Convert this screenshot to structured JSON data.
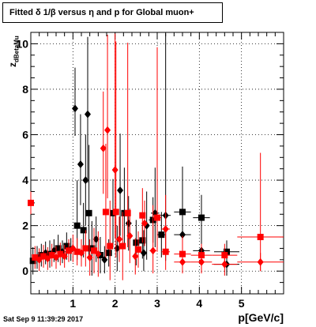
{
  "header": {
    "title": "Fitted δ 1/β versus η and p for Global muon+"
  },
  "footer": {
    "timestamp": "Sat Sep  9 11:39:29 2017"
  },
  "chart_data": {
    "type": "scatter",
    "title": "Fitted δ 1/β versus η and p for Global muon+",
    "xlabel": "p[GeV/c]",
    "ylabel_main": "z",
    "ylabel_sub": "dBetaMu",
    "xlim": [
      0,
      6
    ],
    "ylim": [
      -1,
      10.5
    ],
    "x_ticks": [
      1,
      2,
      3,
      4,
      5
    ],
    "y_ticks": [
      0,
      2,
      4,
      6,
      8,
      10
    ],
    "grid": true,
    "colors": {
      "black_series": "#000000",
      "red_series": "#ff0000"
    },
    "series": [
      {
        "color": "#000000",
        "points": [
          {
            "x": 0.05,
            "y": 0.45,
            "ex": 0.03,
            "eyl": 0.6,
            "eyh": 0.6,
            "m": "square"
          },
          {
            "x": 0.15,
            "y": 0.6,
            "ex": 0.03,
            "eyl": 0.5,
            "eyh": 0.5,
            "m": "diamond"
          },
          {
            "x": 0.25,
            "y": 0.7,
            "ex": 0.03,
            "eyl": 0.5,
            "eyh": 0.5,
            "m": "square"
          },
          {
            "x": 0.35,
            "y": 0.8,
            "ex": 0.03,
            "eyl": 0.5,
            "eyh": 0.5,
            "m": "diamond"
          },
          {
            "x": 0.45,
            "y": 0.75,
            "ex": 0.03,
            "eyl": 0.6,
            "eyh": 0.6,
            "m": "square"
          },
          {
            "x": 0.55,
            "y": 0.9,
            "ex": 0.03,
            "eyl": 0.5,
            "eyh": 0.5,
            "m": "diamond"
          },
          {
            "x": 0.65,
            "y": 1.0,
            "ex": 0.03,
            "eyl": 0.6,
            "eyh": 0.6,
            "m": "square"
          },
          {
            "x": 0.75,
            "y": 0.85,
            "ex": 0.03,
            "eyl": 0.5,
            "eyh": 0.5,
            "m": "diamond"
          },
          {
            "x": 0.85,
            "y": 1.1,
            "ex": 0.03,
            "eyl": 0.6,
            "eyh": 0.6,
            "m": "square"
          },
          {
            "x": 0.95,
            "y": 0.95,
            "ex": 0.03,
            "eyl": 0.5,
            "eyh": 0.5,
            "m": "diamond"
          },
          {
            "x": 1.05,
            "y": 7.15,
            "ex": 0.03,
            "eyl": 1.2,
            "eyh": 1.8,
            "m": "diamond"
          },
          {
            "x": 1.1,
            "y": 2.0,
            "ex": 0.05,
            "eyl": 1.5,
            "eyh": 2.0,
            "m": "square"
          },
          {
            "x": 1.18,
            "y": 4.7,
            "ex": 0.03,
            "eyl": 1.8,
            "eyh": 2.2,
            "m": "diamond"
          },
          {
            "x": 1.25,
            "y": 1.8,
            "ex": 0.05,
            "eyl": 1.2,
            "eyh": 1.2,
            "m": "square"
          },
          {
            "x": 1.3,
            "y": 4.0,
            "ex": 0.03,
            "eyl": 2.0,
            "eyh": 2.0,
            "m": "diamond"
          },
          {
            "x": 1.35,
            "y": 6.9,
            "ex": 0.03,
            "eyl": 3.0,
            "eyh": 3.4,
            "m": "diamond"
          },
          {
            "x": 1.38,
            "y": 2.55,
            "ex": 0.04,
            "eyl": 2.0,
            "eyh": 3.0,
            "m": "square"
          },
          {
            "x": 1.45,
            "y": 1.0,
            "ex": 0.04,
            "eyl": 1.2,
            "eyh": 1.2,
            "m": "square"
          },
          {
            "x": 1.55,
            "y": 1.4,
            "ex": 0.04,
            "eyl": 1.0,
            "eyh": 1.0,
            "m": "diamond"
          },
          {
            "x": 1.65,
            "y": 0.7,
            "ex": 0.04,
            "eyl": 0.8,
            "eyh": 0.8,
            "m": "square"
          },
          {
            "x": 1.75,
            "y": 0.5,
            "ex": 0.04,
            "eyl": 0.6,
            "eyh": 0.6,
            "m": "diamond"
          },
          {
            "x": 1.85,
            "y": 0.8,
            "ex": 0.04,
            "eyl": 0.6,
            "eyh": 0.6,
            "m": "square"
          },
          {
            "x": 1.95,
            "y": 2.55,
            "ex": 0.04,
            "eyl": 1.5,
            "eyh": 1.5,
            "m": "square"
          },
          {
            "x": 2.05,
            "y": 1.0,
            "ex": 0.04,
            "eyl": 1.0,
            "eyh": 1.0,
            "m": "diamond"
          },
          {
            "x": 2.12,
            "y": 3.55,
            "ex": 0.05,
            "eyl": 2.0,
            "eyh": 2.5,
            "m": "diamond"
          },
          {
            "x": 2.22,
            "y": 2.55,
            "ex": 0.05,
            "eyl": 1.5,
            "eyh": 2.0,
            "m": "square"
          },
          {
            "x": 2.32,
            "y": 2.1,
            "ex": 0.05,
            "eyl": 1.2,
            "eyh": 1.2,
            "m": "diamond"
          },
          {
            "x": 2.5,
            "y": 1.25,
            "ex": 0.05,
            "eyl": 1.0,
            "eyh": 1.0,
            "m": "square"
          },
          {
            "x": 2.65,
            "y": 1.35,
            "ex": 0.06,
            "eyl": 0.8,
            "eyh": 0.8,
            "m": "square"
          },
          {
            "x": 2.68,
            "y": 0.8,
            "ex": 0.05,
            "eyl": 0.8,
            "eyh": 1.0,
            "m": "diamond"
          },
          {
            "x": 2.75,
            "y": 2.0,
            "ex": 0.06,
            "eyl": 1.5,
            "eyh": 1.5,
            "m": "diamond"
          },
          {
            "x": 2.9,
            "y": 2.25,
            "ex": 0.1,
            "eyl": 1.0,
            "eyh": 1.0,
            "m": "square"
          },
          {
            "x": 2.95,
            "y": 2.55,
            "ex": 0.1,
            "eyl": 1.5,
            "eyh": 2.0,
            "m": "diamond"
          },
          {
            "x": 3.1,
            "y": 1.6,
            "ex": 0.1,
            "eyl": 1.0,
            "eyh": 1.0,
            "m": "square"
          },
          {
            "x": 3.2,
            "y": 2.45,
            "ex": 0.12,
            "eyl": 2.0,
            "eyh": 8.0,
            "m": "diamond"
          },
          {
            "x": 3.6,
            "y": 2.6,
            "ex": 0.2,
            "eyl": 1.2,
            "eyh": 1.2,
            "m": "square"
          },
          {
            "x": 3.6,
            "y": 1.6,
            "ex": 0.2,
            "eyl": 1.0,
            "eyh": 3.0,
            "m": "diamond"
          },
          {
            "x": 4.05,
            "y": 2.35,
            "ex": 0.2,
            "eyl": 1.0,
            "eyh": 1.0,
            "m": "square"
          },
          {
            "x": 4.05,
            "y": 0.9,
            "ex": 0.2,
            "eyl": 0.8,
            "eyh": 0.8,
            "m": "diamond"
          },
          {
            "x": 4.65,
            "y": 0.85,
            "ex": 0.3,
            "eyl": 0.5,
            "eyh": 0.5,
            "m": "square"
          },
          {
            "x": 4.65,
            "y": 0.3,
            "ex": 0.3,
            "eyl": 0.5,
            "eyh": 0.5,
            "m": "diamond"
          }
        ]
      },
      {
        "color": "#ff0000",
        "points": [
          {
            "x": 0.0,
            "y": 3.0,
            "ex": 0.03,
            "eyl": 0.5,
            "eyh": 0.5,
            "m": "square"
          },
          {
            "x": 0.1,
            "y": 0.6,
            "ex": 0.03,
            "eyl": 0.5,
            "eyh": 0.5,
            "m": "square"
          },
          {
            "x": 0.2,
            "y": 0.5,
            "ex": 0.03,
            "eyl": 0.5,
            "eyh": 0.5,
            "m": "diamond"
          },
          {
            "x": 0.3,
            "y": 0.65,
            "ex": 0.03,
            "eyl": 0.5,
            "eyh": 0.5,
            "m": "square"
          },
          {
            "x": 0.4,
            "y": 0.55,
            "ex": 0.03,
            "eyl": 0.5,
            "eyh": 0.5,
            "m": "diamond"
          },
          {
            "x": 0.5,
            "y": 0.7,
            "ex": 0.03,
            "eyl": 0.5,
            "eyh": 0.5,
            "m": "square"
          },
          {
            "x": 0.6,
            "y": 0.6,
            "ex": 0.03,
            "eyl": 0.5,
            "eyh": 0.5,
            "m": "diamond"
          },
          {
            "x": 0.7,
            "y": 0.75,
            "ex": 0.03,
            "eyl": 0.5,
            "eyh": 0.5,
            "m": "square"
          },
          {
            "x": 0.8,
            "y": 0.65,
            "ex": 0.03,
            "eyl": 0.5,
            "eyh": 0.5,
            "m": "diamond"
          },
          {
            "x": 0.9,
            "y": 0.9,
            "ex": 0.03,
            "eyl": 0.5,
            "eyh": 0.5,
            "m": "square"
          },
          {
            "x": 1.0,
            "y": 1.0,
            "ex": 0.03,
            "eyl": 0.6,
            "eyh": 0.6,
            "m": "diamond"
          },
          {
            "x": 1.1,
            "y": 0.85,
            "ex": 0.03,
            "eyl": 0.6,
            "eyh": 0.6,
            "m": "square"
          },
          {
            "x": 1.2,
            "y": 0.8,
            "ex": 0.03,
            "eyl": 0.6,
            "eyh": 0.6,
            "m": "diamond"
          },
          {
            "x": 1.3,
            "y": 1.0,
            "ex": 0.03,
            "eyl": 0.8,
            "eyh": 0.8,
            "m": "square"
          },
          {
            "x": 1.4,
            "y": 0.6,
            "ex": 0.03,
            "eyl": 0.8,
            "eyh": 0.8,
            "m": "diamond"
          },
          {
            "x": 1.5,
            "y": 0.9,
            "ex": 0.04,
            "eyl": 1.0,
            "eyh": 1.0,
            "m": "square"
          },
          {
            "x": 1.6,
            "y": 0.75,
            "ex": 0.04,
            "eyl": 1.0,
            "eyh": 1.0,
            "m": "diamond"
          },
          {
            "x": 1.72,
            "y": 5.4,
            "ex": 0.03,
            "eyl": 2.0,
            "eyh": 2.5,
            "m": "diamond"
          },
          {
            "x": 1.78,
            "y": 2.6,
            "ex": 0.04,
            "eyl": 2.0,
            "eyh": 3.0,
            "m": "square"
          },
          {
            "x": 1.82,
            "y": 6.2,
            "ex": 0.03,
            "eyl": 3.0,
            "eyh": 4.2,
            "m": "diamond"
          },
          {
            "x": 1.88,
            "y": 1.1,
            "ex": 0.04,
            "eyl": 1.5,
            "eyh": 2.0,
            "m": "square"
          },
          {
            "x": 2.0,
            "y": 4.45,
            "ex": 0.05,
            "eyl": 3.0,
            "eyh": 6.0,
            "m": "diamond"
          },
          {
            "x": 2.02,
            "y": 2.6,
            "ex": 0.05,
            "eyl": 2.0,
            "eyh": 7.5,
            "m": "square"
          },
          {
            "x": 2.1,
            "y": 1.4,
            "ex": 0.05,
            "eyl": 1.0,
            "eyh": 1.0,
            "m": "diamond"
          },
          {
            "x": 2.18,
            "y": 1.1,
            "ex": 0.05,
            "eyl": 1.5,
            "eyh": 1.5,
            "m": "square"
          },
          {
            "x": 2.3,
            "y": 2.55,
            "ex": 0.06,
            "eyl": 1.5,
            "eyh": 7.5,
            "m": "square"
          },
          {
            "x": 2.35,
            "y": 1.55,
            "ex": 0.06,
            "eyl": 1.2,
            "eyh": 1.2,
            "m": "diamond"
          },
          {
            "x": 2.48,
            "y": 0.65,
            "ex": 0.06,
            "eyl": 0.8,
            "eyh": 0.8,
            "m": "diamond"
          },
          {
            "x": 2.55,
            "y": 0.95,
            "ex": 0.06,
            "eyl": 0.8,
            "eyh": 0.8,
            "m": "square"
          },
          {
            "x": 2.65,
            "y": 2.45,
            "ex": 0.07,
            "eyl": 1.2,
            "eyh": 1.2,
            "m": "square"
          },
          {
            "x": 2.7,
            "y": 2.1,
            "ex": 0.07,
            "eyl": 1.0,
            "eyh": 1.0,
            "m": "diamond"
          },
          {
            "x": 2.9,
            "y": 0.9,
            "ex": 0.08,
            "eyl": 1.0,
            "eyh": 2.0,
            "m": "diamond"
          },
          {
            "x": 3.0,
            "y": 2.35,
            "ex": 0.1,
            "eyl": 1.5,
            "eyh": 7.5,
            "m": "square"
          },
          {
            "x": 3.2,
            "y": 1.85,
            "ex": 0.1,
            "eyl": 1.0,
            "eyh": 1.5,
            "m": "diamond"
          },
          {
            "x": 3.2,
            "y": 0.85,
            "ex": 0.1,
            "eyl": 0.8,
            "eyh": 0.8,
            "m": "square"
          },
          {
            "x": 3.6,
            "y": 0.75,
            "ex": 0.2,
            "eyl": 0.8,
            "eyh": 0.8,
            "m": "square"
          },
          {
            "x": 3.6,
            "y": 0.4,
            "ex": 0.2,
            "eyl": 0.5,
            "eyh": 0.5,
            "m": "diamond"
          },
          {
            "x": 4.05,
            "y": 0.7,
            "ex": 0.25,
            "eyl": 0.5,
            "eyh": 0.5,
            "m": "square"
          },
          {
            "x": 4.05,
            "y": 0.4,
            "ex": 0.25,
            "eyl": 0.5,
            "eyh": 0.5,
            "m": "diamond"
          },
          {
            "x": 4.6,
            "y": 0.7,
            "ex": 0.3,
            "eyl": 0.5,
            "eyh": 0.5,
            "m": "square"
          },
          {
            "x": 4.6,
            "y": 0.3,
            "ex": 0.3,
            "eyl": 0.5,
            "eyh": 0.5,
            "m": "diamond"
          },
          {
            "x": 5.45,
            "y": 1.5,
            "ex": 0.55,
            "eyl": 1.5,
            "eyh": 3.7,
            "m": "square"
          },
          {
            "x": 5.45,
            "y": 0.4,
            "ex": 0.55,
            "eyl": 0.4,
            "eyh": 0.4,
            "m": "diamond"
          }
        ]
      }
    ]
  }
}
